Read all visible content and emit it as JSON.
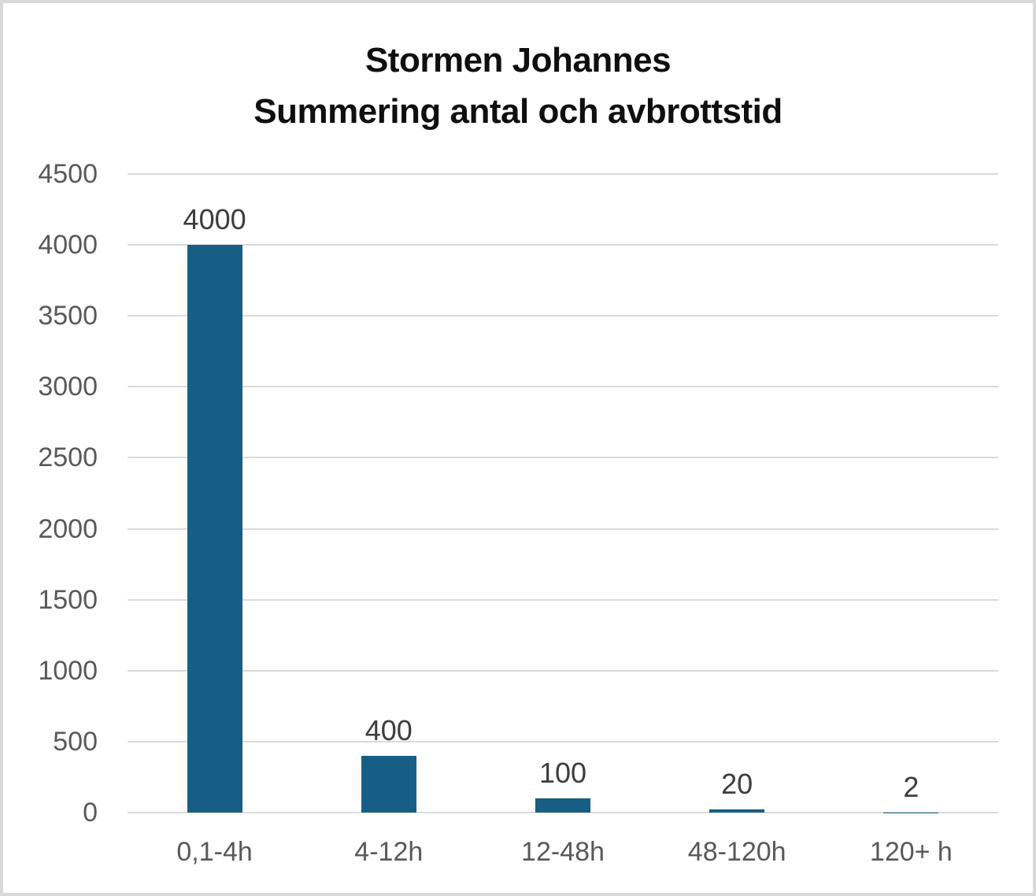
{
  "title": {
    "line1": "Stormen Johannes",
    "line2": "Summering antal och avbrottstid"
  },
  "colors": {
    "bar": "#175E85",
    "grid": "#DADADA",
    "axis_text": "#595959",
    "data_label_text": "#3D3D3D",
    "title_text": "#0F0F0F",
    "frame": "#D9D9D9"
  },
  "chart_data": {
    "type": "bar",
    "title": "Stormen Johannes – Summering antal och avbrottstid",
    "categories": [
      "0,1-4h",
      "4-12h",
      "12-48h",
      "48-120h",
      "120+ h"
    ],
    "values": [
      4000,
      400,
      100,
      20,
      2
    ],
    "data_labels": [
      "4000",
      "400",
      "100",
      "20",
      "2"
    ],
    "ytick_labels": [
      "0",
      "500",
      "1000",
      "1500",
      "2000",
      "2500",
      "3000",
      "3500",
      "4000",
      "4500"
    ],
    "yticks": [
      0,
      500,
      1000,
      1500,
      2000,
      2500,
      3000,
      3500,
      4000,
      4500
    ],
    "ylim": [
      0,
      4500
    ],
    "ytick_step": 500,
    "xlabel": "",
    "ylabel": "",
    "grid": true,
    "legend": false,
    "bar_color": "#175E85"
  }
}
